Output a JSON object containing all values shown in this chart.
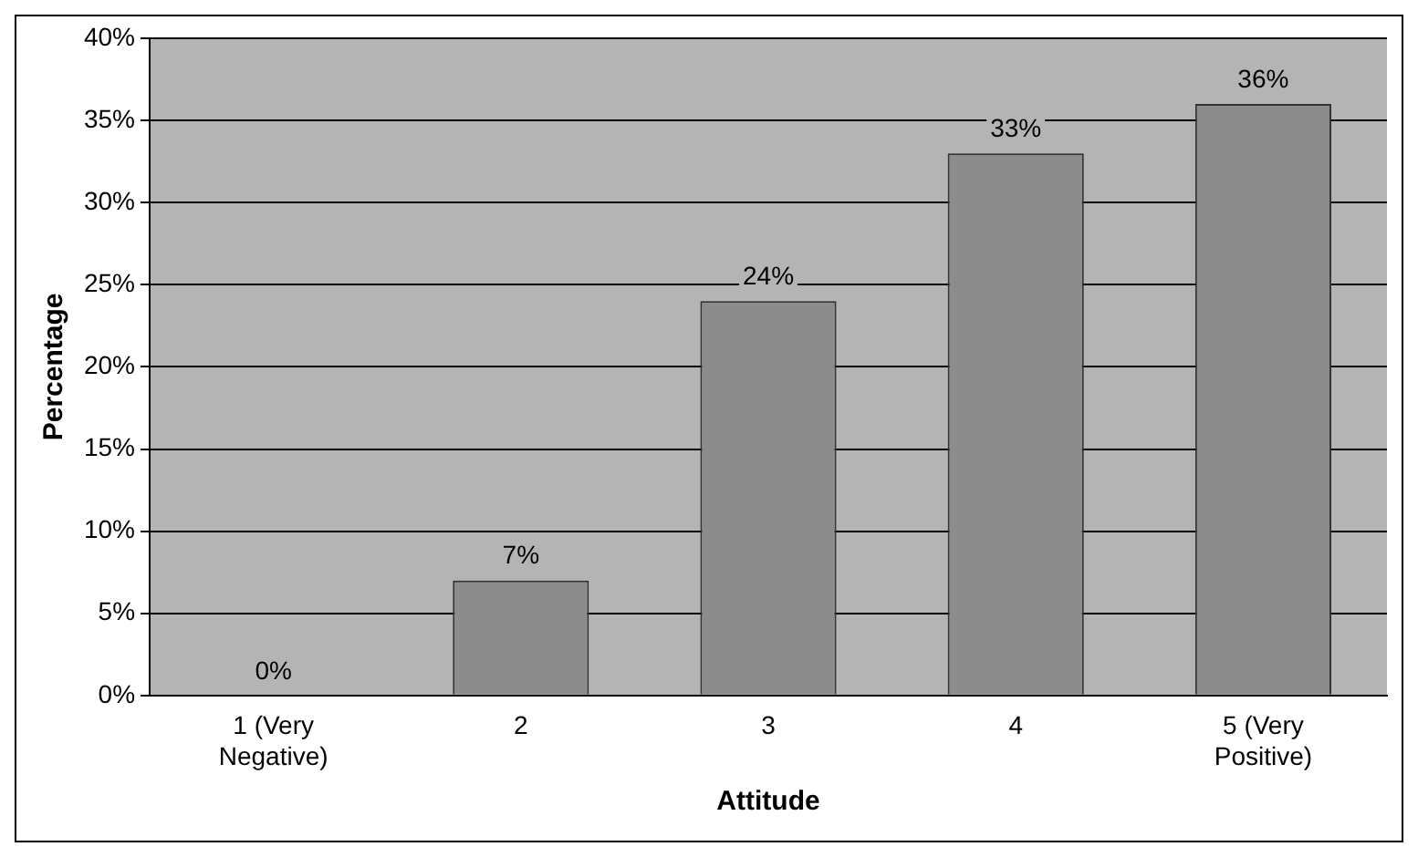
{
  "chart_data": {
    "type": "bar",
    "xlabel": "Attitude",
    "ylabel": "Percentage",
    "categories": [
      "1 (Very Negative)",
      "2",
      "3",
      "4",
      "5 (Very Positive)"
    ],
    "values": [
      0,
      7,
      24,
      33,
      36
    ],
    "value_labels": [
      "0%",
      "7%",
      "24%",
      "33%",
      "36%"
    ],
    "color": "#8c8c8c",
    "ylim": [
      0,
      40
    ],
    "yticks": [
      {
        "value": 0,
        "label": "0%"
      },
      {
        "value": 5,
        "label": "5%"
      },
      {
        "value": 10,
        "label": "10%"
      },
      {
        "value": 15,
        "label": "15%"
      },
      {
        "value": 20,
        "label": "20%"
      },
      {
        "value": 25,
        "label": "25%"
      },
      {
        "value": 30,
        "label": "30%"
      },
      {
        "value": 35,
        "label": "35%"
      },
      {
        "value": 40,
        "label": "40%"
      }
    ],
    "grid": "y",
    "legend": false
  }
}
